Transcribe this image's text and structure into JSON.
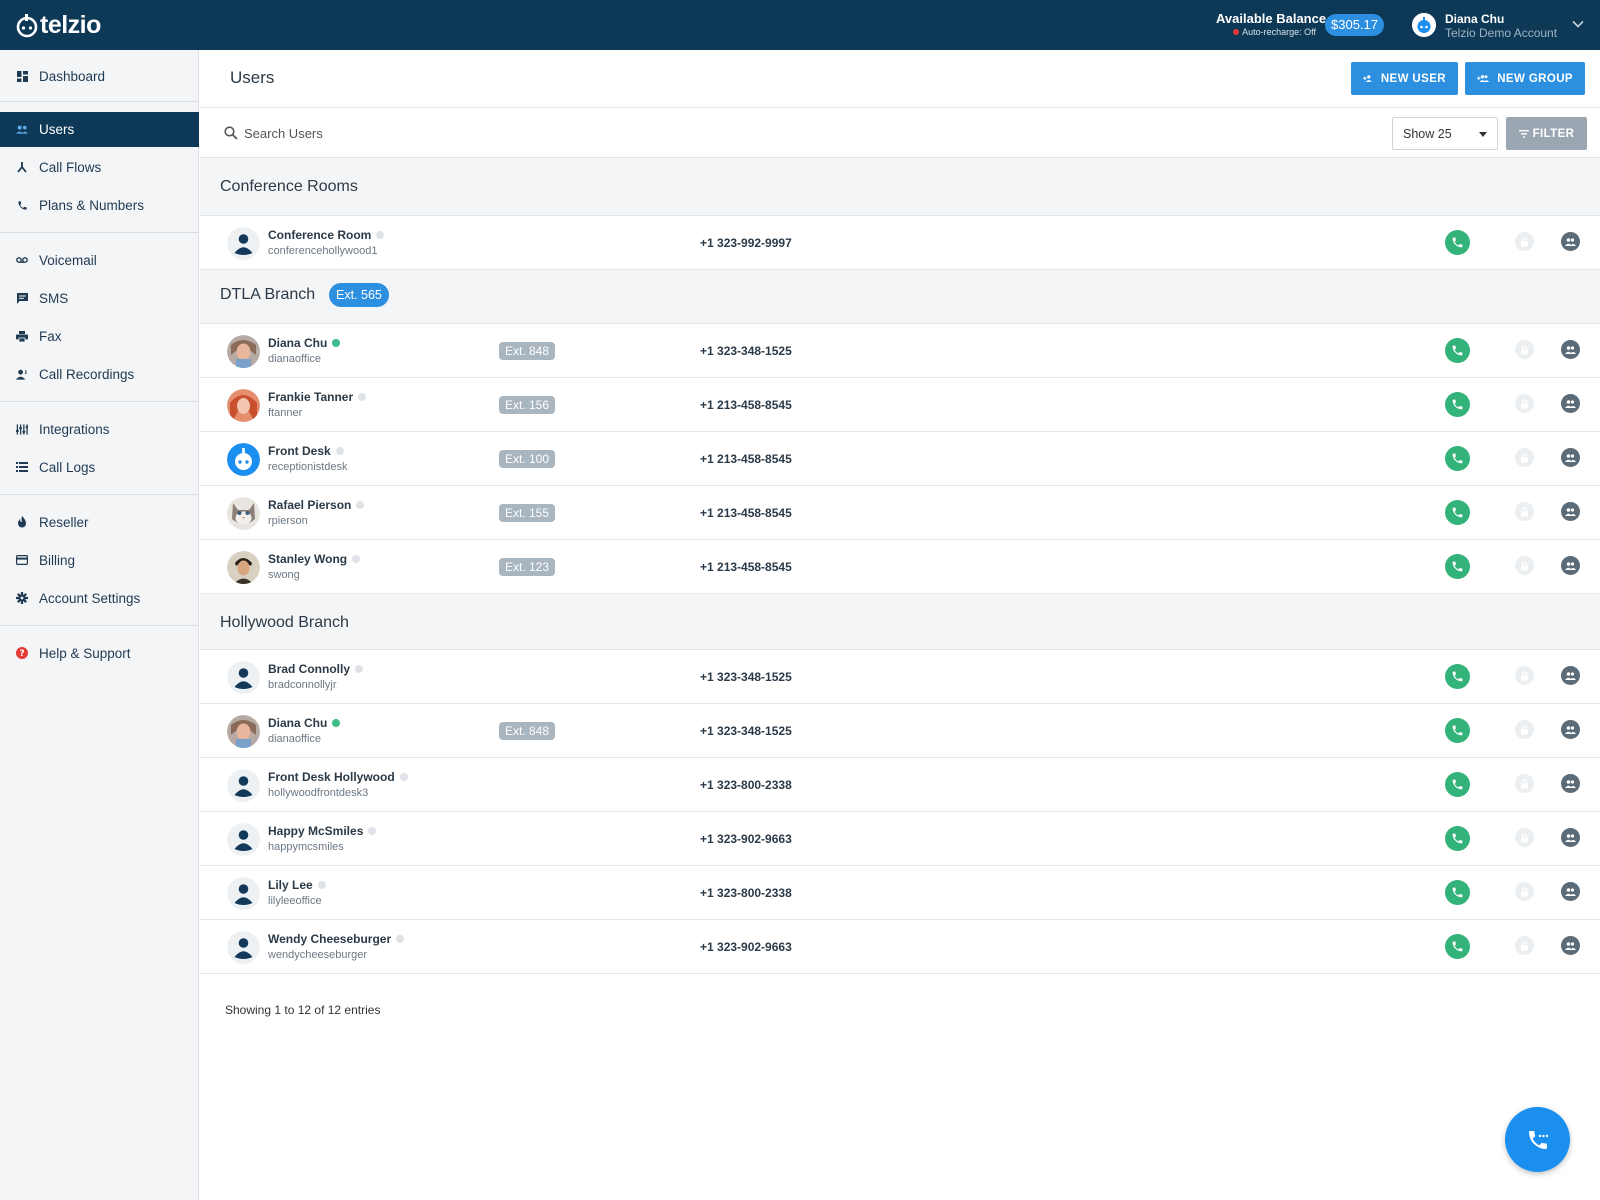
{
  "app": {
    "logo_text": "telzio"
  },
  "header": {
    "balance_label": "Available Balance",
    "autorecharge": "Auto-recharge: Off",
    "balance_amount": "$305.17",
    "user_name": "Diana Chu",
    "account_name": "Telzio Demo Account"
  },
  "sidebar": {
    "items": [
      {
        "label": "Dashboard",
        "icon": "dashboard-icon"
      },
      {
        "label": "Users",
        "icon": "users-icon",
        "active": true
      },
      {
        "label": "Call Flows",
        "icon": "call-flows-icon"
      },
      {
        "label": "Plans & Numbers",
        "icon": "phone-icon"
      },
      {
        "label": "Voicemail",
        "icon": "voicemail-icon"
      },
      {
        "label": "SMS",
        "icon": "sms-icon"
      },
      {
        "label": "Fax",
        "icon": "fax-icon"
      },
      {
        "label": "Call Recordings",
        "icon": "recordings-icon"
      },
      {
        "label": "Integrations",
        "icon": "integrations-icon"
      },
      {
        "label": "Call Logs",
        "icon": "list-icon"
      },
      {
        "label": "Reseller",
        "icon": "reseller-icon"
      },
      {
        "label": "Billing",
        "icon": "billing-icon"
      },
      {
        "label": "Account Settings",
        "icon": "gear-icon"
      },
      {
        "label": "Help & Support",
        "icon": "help-icon"
      }
    ]
  },
  "page": {
    "title": "Users",
    "new_user_label": "NEW USER",
    "new_group_label": "NEW GROUP",
    "search_placeholder": "Search Users",
    "show_label": "Show 25",
    "filter_label": "FILTER",
    "footer": "Showing 1 to 12 of 12 entries"
  },
  "groups": [
    {
      "name": "Conference Rooms",
      "ext": "",
      "users": [
        {
          "name": "Conference Room",
          "handle": "conferencehollywood1",
          "ext": "",
          "phone": "+1 323-992-9997",
          "status": "offline",
          "avatar": "default"
        }
      ]
    },
    {
      "name": "DTLA Branch",
      "ext": "Ext. 565",
      "users": [
        {
          "name": "Diana Chu",
          "handle": "dianaoffice",
          "ext": "Ext. 848",
          "phone": "+1 323-348-1525",
          "status": "online",
          "avatar": "photo-diana"
        },
        {
          "name": "Frankie Tanner",
          "handle": "ftanner",
          "ext": "Ext. 156",
          "phone": "+1 213-458-8545",
          "status": "offline",
          "avatar": "photo-frankie"
        },
        {
          "name": "Front Desk",
          "handle": "receptionistdesk",
          "ext": "Ext. 100",
          "phone": "+1 213-458-8545",
          "status": "offline",
          "avatar": "telzio-logo"
        },
        {
          "name": "Rafael Pierson",
          "handle": "rpierson",
          "ext": "Ext. 155",
          "phone": "+1 213-458-8545",
          "status": "offline",
          "avatar": "photo-cat"
        },
        {
          "name": "Stanley Wong",
          "handle": "swong",
          "ext": "Ext. 123",
          "phone": "+1 213-458-8545",
          "status": "offline",
          "avatar": "photo-stanley"
        }
      ]
    },
    {
      "name": "Hollywood Branch",
      "ext": "",
      "users": [
        {
          "name": "Brad Connolly",
          "handle": "bradconnollyjr",
          "ext": "",
          "phone": "+1 323-348-1525",
          "status": "offline",
          "avatar": "default"
        },
        {
          "name": "Diana Chu",
          "handle": "dianaoffice",
          "ext": "Ext. 848",
          "phone": "+1 323-348-1525",
          "status": "online",
          "avatar": "photo-diana"
        },
        {
          "name": "Front Desk Hollywood",
          "handle": "hollywoodfrontdesk3",
          "ext": "",
          "phone": "+1 323-800-2338",
          "status": "offline",
          "avatar": "default"
        },
        {
          "name": "Happy McSmiles",
          "handle": "happymcsmiles",
          "ext": "",
          "phone": "+1 323-902-9663",
          "status": "offline",
          "avatar": "default"
        },
        {
          "name": "Lily Lee",
          "handle": "lilyleeoffice",
          "ext": "",
          "phone": "+1 323-800-2338",
          "status": "offline",
          "avatar": "default"
        },
        {
          "name": "Wendy Cheeseburger",
          "handle": "wendycheeseburger",
          "ext": "",
          "phone": "+1 323-902-9663",
          "status": "offline",
          "avatar": "default"
        }
      ]
    }
  ],
  "colors": {
    "topbar": "#0d3957",
    "accent": "#2d8fe0",
    "call_green": "#33b37a",
    "online": "#3dbb88"
  }
}
